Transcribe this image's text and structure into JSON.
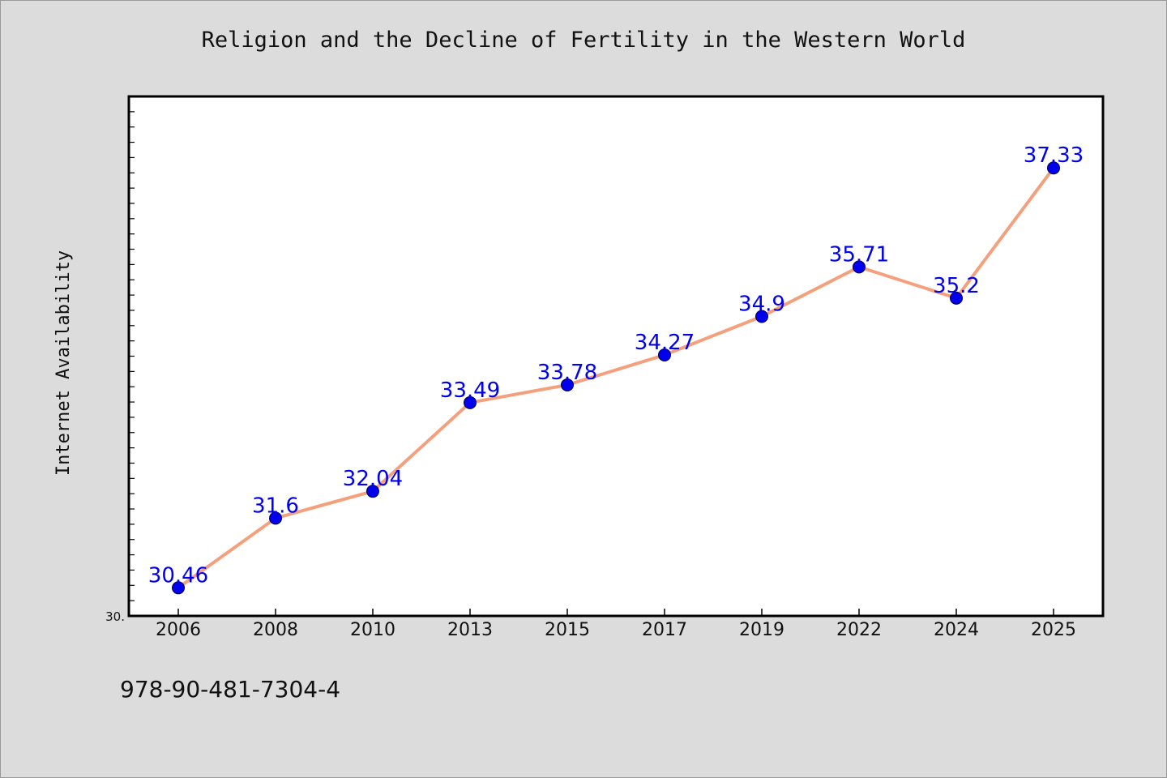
{
  "chart_data": {
    "type": "line",
    "title": "Religion and the Decline of Fertility in the Western World",
    "xlabel": "",
    "ylabel": "Internet Availability",
    "categories": [
      "2006",
      "2008",
      "2010",
      "2013",
      "2015",
      "2017",
      "2019",
      "2022",
      "2024",
      "2025"
    ],
    "series": [
      {
        "values": [
          30.46,
          31.6,
          32.04,
          33.49,
          33.78,
          34.27,
          34.9,
          35.71,
          35.2,
          37.33
        ],
        "labels": [
          "30.46",
          "31.6",
          "32.04",
          "33.49",
          "33.78",
          "34.27",
          "34.9",
          "35.71",
          "35.2",
          "37.33"
        ],
        "line_color": "#f4a07c",
        "marker_color": "#0000ee"
      }
    ],
    "ylim": [
      30.0,
      38.5
    ],
    "yticks": [
      {
        "value": 30.0,
        "label": "30."
      }
    ],
    "grid": false,
    "legend": "none",
    "plot_background": "#ffffff",
    "page_background": "#dcdcdc"
  },
  "footer": {
    "isbn": "978-90-481-7304-4"
  }
}
